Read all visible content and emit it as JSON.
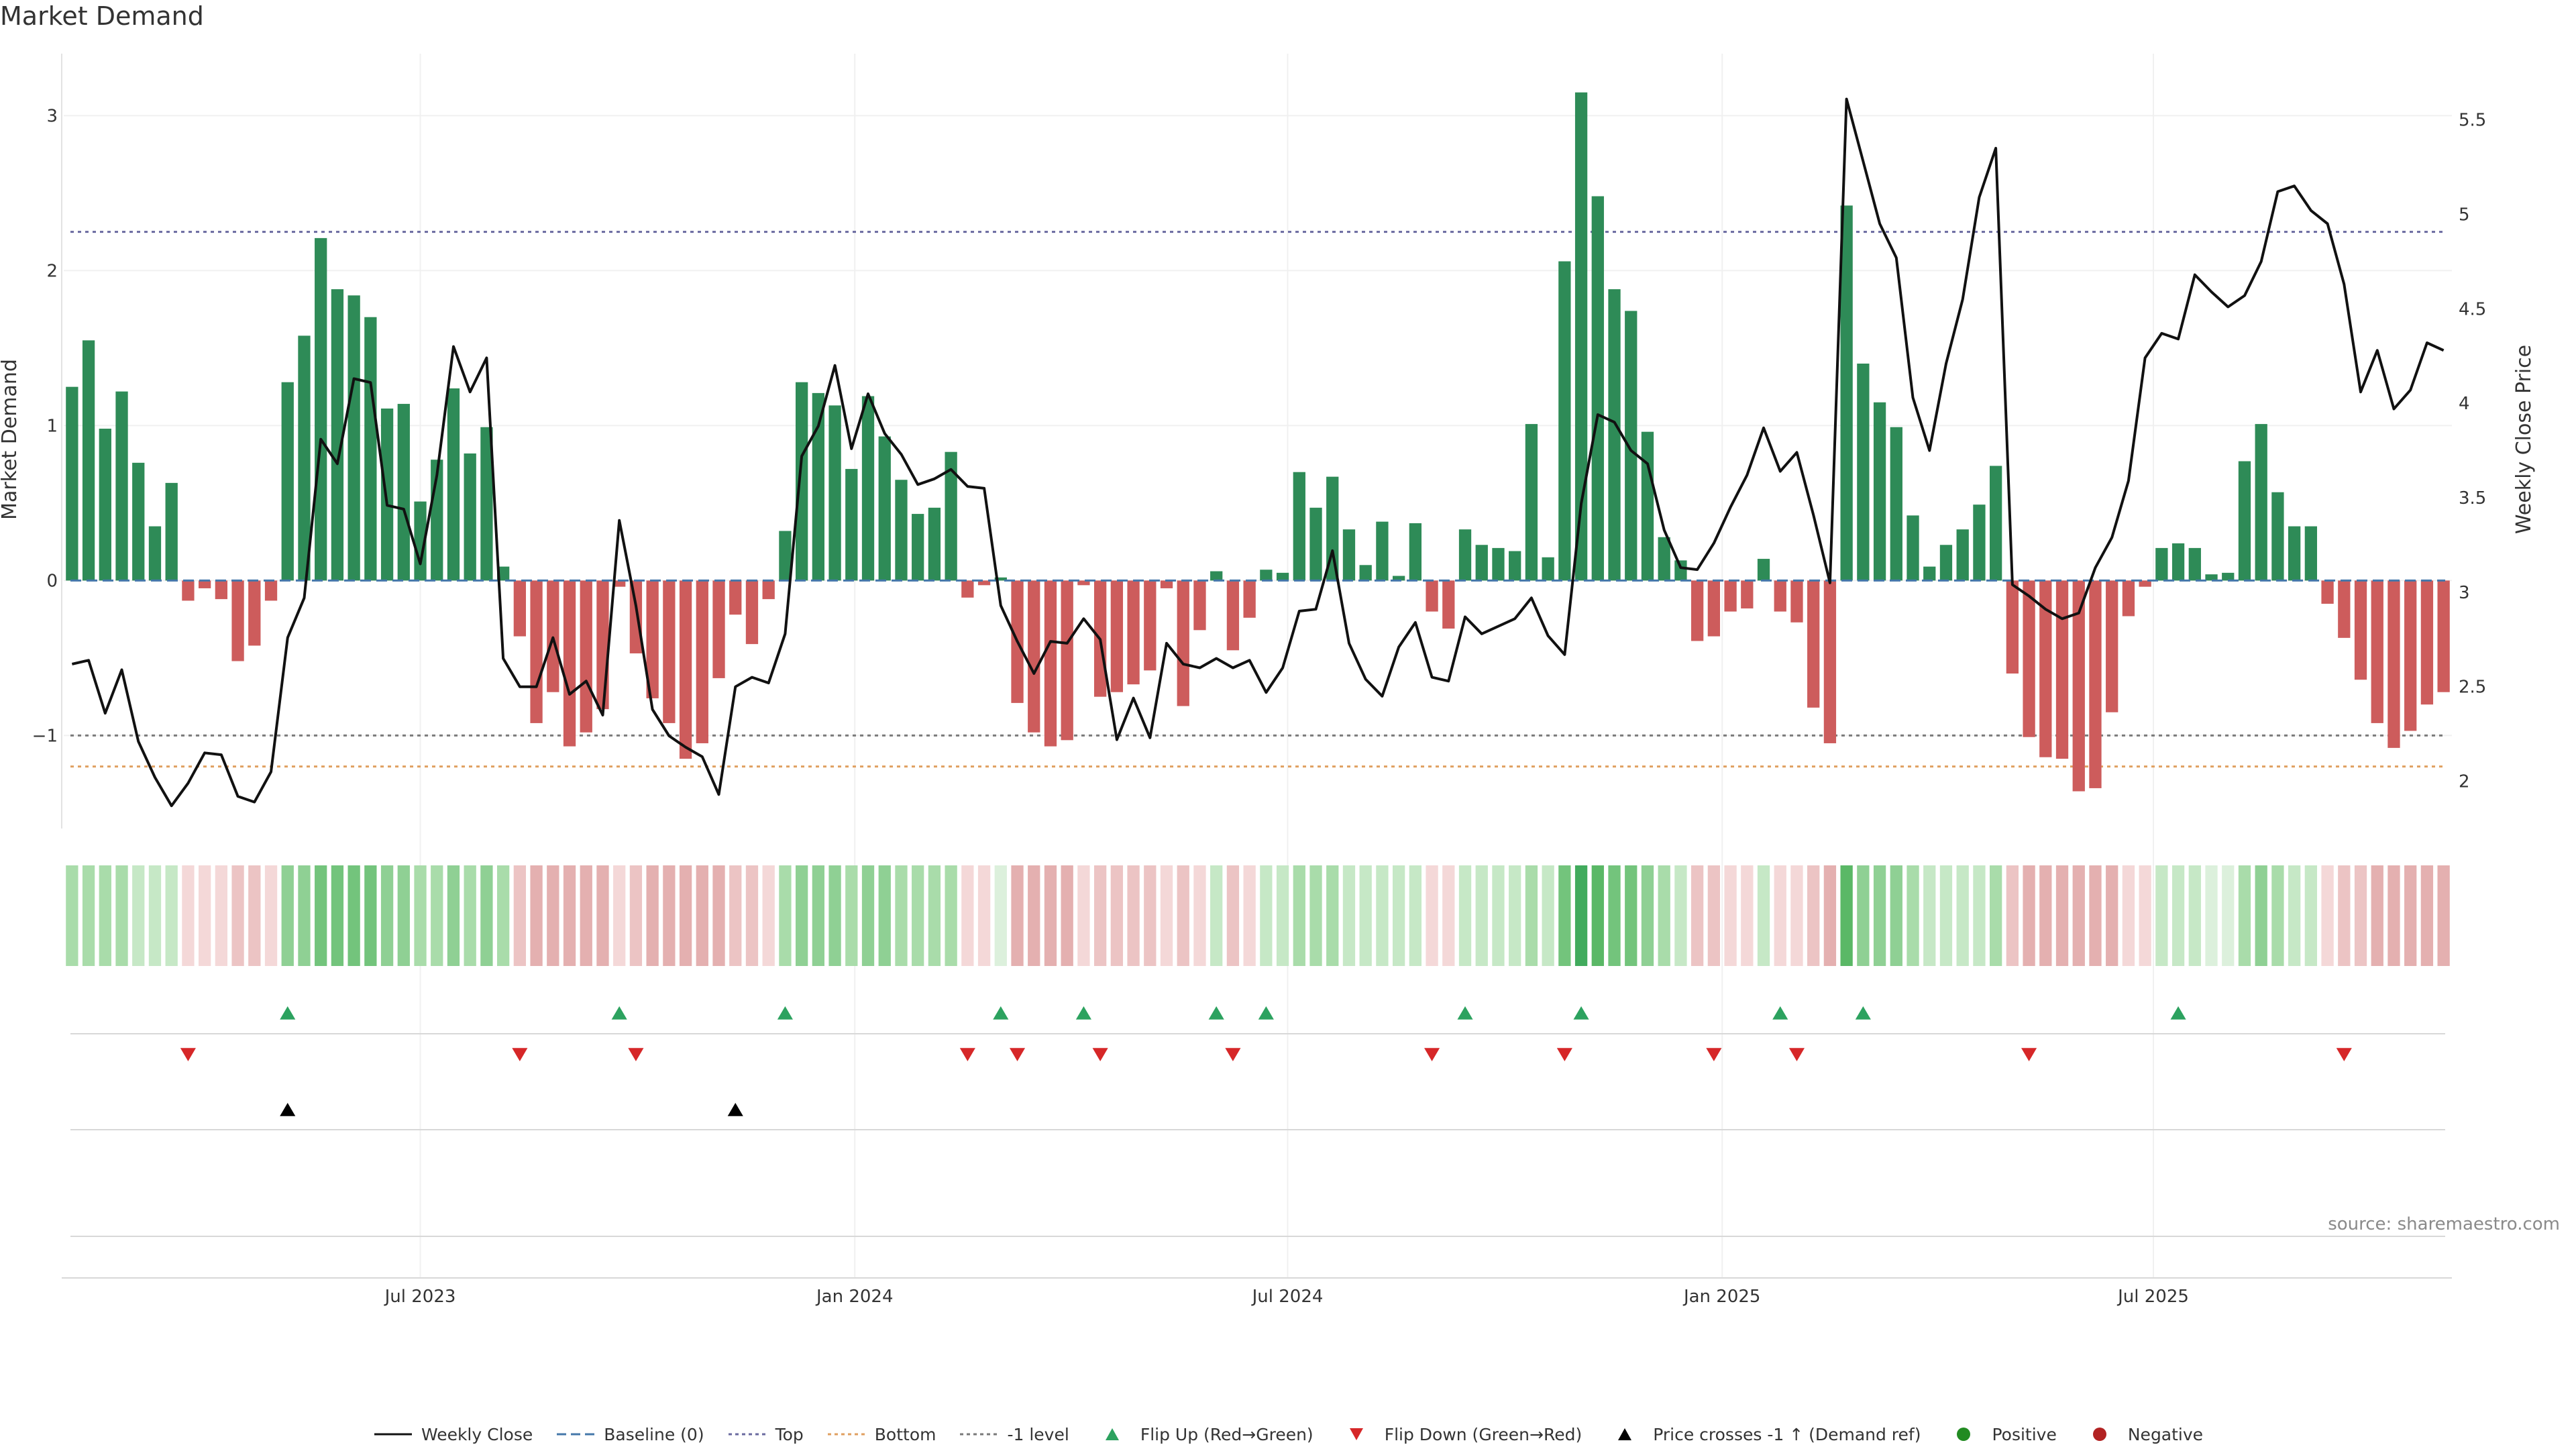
{
  "chart_data": {
    "type": "bar",
    "title": "Market Demand",
    "source": "source: sharemaestro.com",
    "y_left_label": "Market Demand",
    "y_right_label": "Weekly Close Price",
    "y_left_ticks": [
      "3",
      "2",
      "1",
      "0",
      "−1"
    ],
    "y_left_tick_values": [
      3,
      2,
      1,
      0,
      -1
    ],
    "y_left_range": [
      -1.6,
      3.4
    ],
    "y_right_ticks": [
      "5.5",
      "5",
      "4.5",
      "4",
      "3.5",
      "3",
      "2.5",
      "2"
    ],
    "y_right_tick_values": [
      5.5,
      5,
      4.5,
      4,
      3.5,
      3,
      2.5,
      2
    ],
    "y_right_range": [
      1.75,
      5.85
    ],
    "x_ticks": [
      "Jul 2023",
      "Jan 2024",
      "Jul 2024",
      "Jan 2025",
      "Jul 2025"
    ],
    "x_tick_weeks": [
      21.5,
      47.7,
      73.8,
      100,
      126
    ],
    "weeks": 144,
    "reference_lines": {
      "top": 2.25,
      "bottom": -1.2,
      "minus_one": -1.0,
      "baseline": 0
    },
    "demand": [
      1.25,
      1.55,
      0.98,
      1.22,
      0.76,
      0.35,
      0.63,
      -0.13,
      -0.05,
      -0.12,
      -0.52,
      -0.42,
      -0.13,
      1.28,
      1.58,
      2.21,
      1.88,
      1.84,
      1.7,
      1.11,
      1.14,
      0.51,
      0.78,
      1.24,
      0.82,
      0.99,
      0.09,
      -0.36,
      -0.92,
      -0.72,
      -1.07,
      -0.98,
      -0.83,
      -0.04,
      -0.47,
      -0.76,
      -0.92,
      -1.15,
      -1.05,
      -0.63,
      -0.22,
      -0.41,
      -0.12,
      0.32,
      1.28,
      1.21,
      1.13,
      0.72,
      1.19,
      0.93,
      0.65,
      0.43,
      0.47,
      0.83,
      -0.11,
      -0.03,
      0.02,
      -0.79,
      -0.98,
      -1.07,
      -1.03,
      -0.03,
      -0.75,
      -0.72,
      -0.67,
      -0.58,
      -0.05,
      -0.81,
      -0.32,
      0.06,
      -0.45,
      -0.24,
      0.07,
      0.05,
      0.7,
      0.47,
      0.67,
      0.33,
      0.1,
      0.38,
      0.03,
      0.37,
      -0.2,
      -0.31,
      0.33,
      0.23,
      0.21,
      0.19,
      1.01,
      0.15,
      2.06,
      3.15,
      2.48,
      1.88,
      1.74,
      0.96,
      0.28,
      0.13,
      -0.39,
      -0.36,
      -0.2,
      -0.18,
      0.14,
      -0.2,
      -0.27,
      -0.82,
      -1.05,
      2.42,
      1.4,
      1.15,
      0.99,
      0.42,
      0.09,
      0.23,
      0.33,
      0.49,
      0.74,
      -0.6,
      -1.01,
      -1.14,
      -1.15,
      -1.36,
      -1.34,
      -0.85,
      -0.23,
      -0.04,
      0.21,
      0.24,
      0.21,
      0.04,
      0.05,
      0.77,
      1.01,
      0.57,
      0.35,
      0.35,
      -0.15,
      -0.37,
      -0.64,
      -0.92,
      -1.08,
      -0.97,
      -0.8,
      -0.72
    ],
    "weekly_close": [
      2.62,
      2.64,
      2.36,
      2.59,
      2.21,
      2.02,
      1.87,
      1.99,
      2.15,
      2.14,
      1.92,
      1.89,
      2.05,
      2.76,
      2.97,
      3.81,
      3.68,
      4.13,
      4.11,
      3.46,
      3.44,
      3.15,
      3.62,
      4.3,
      4.06,
      4.24,
      2.65,
      2.5,
      2.5,
      2.76,
      2.46,
      2.53,
      2.35,
      3.38,
      2.93,
      2.38,
      2.24,
      2.18,
      2.13,
      1.93,
      2.5,
      2.55,
      2.52,
      2.78,
      3.72,
      3.88,
      4.2,
      3.76,
      4.05,
      3.84,
      3.73,
      3.57,
      3.6,
      3.65,
      3.56,
      3.55,
      2.93,
      2.74,
      2.57,
      2.74,
      2.73,
      2.86,
      2.75,
      2.22,
      2.44,
      2.23,
      2.73,
      2.62,
      2.6,
      2.65,
      2.6,
      2.64,
      2.47,
      2.6,
      2.9,
      2.91,
      3.22,
      2.73,
      2.54,
      2.45,
      2.71,
      2.84,
      2.55,
      2.53,
      2.87,
      2.78,
      2.82,
      2.86,
      2.97,
      2.77,
      2.67,
      3.47,
      3.94,
      3.9,
      3.75,
      3.68,
      3.33,
      3.13,
      3.12,
      3.26,
      3.45,
      3.62,
      3.87,
      3.64,
      3.74,
      3.41,
      3.05,
      5.61,
      5.28,
      4.95,
      4.77,
      4.03,
      3.75,
      4.21,
      4.55,
      5.09,
      5.35,
      3.04,
      2.98,
      2.91,
      2.86,
      2.89,
      3.13,
      3.29,
      3.59,
      4.24,
      4.37,
      4.34,
      4.68,
      4.59,
      4.51,
      4.57,
      4.75,
      5.12,
      5.15,
      5.02,
      4.95,
      4.63,
      4.06,
      4.28,
      3.97,
      4.07,
      4.32,
      4.28
    ],
    "heat_band": [
      3,
      3,
      3,
      3,
      2,
      2,
      2,
      1,
      1,
      1,
      2,
      2,
      1,
      4,
      4,
      5,
      5,
      5,
      5,
      4,
      4,
      3,
      3,
      4,
      3,
      4,
      3,
      2,
      3,
      3,
      3,
      3,
      3,
      1,
      2,
      3,
      3,
      3,
      3,
      3,
      2,
      2,
      1,
      3,
      4,
      4,
      4,
      3,
      4,
      4,
      3,
      3,
      3,
      3,
      1,
      1,
      1,
      3,
      3,
      3,
      3,
      1,
      2,
      2,
      2,
      2,
      1,
      2,
      1,
      2,
      2,
      1,
      2,
      2,
      3,
      3,
      3,
      2,
      2,
      2,
      2,
      2,
      1,
      1,
      2,
      2,
      2,
      2,
      3,
      2,
      5,
      7,
      6,
      5,
      5,
      4,
      3,
      2,
      2,
      2,
      1,
      1,
      2,
      1,
      1,
      2,
      3,
      6,
      4,
      4,
      4,
      3,
      2,
      2,
      2,
      2,
      3,
      2,
      3,
      3,
      3,
      3,
      3,
      3,
      1,
      1,
      2,
      2,
      2,
      1,
      1,
      3,
      4,
      3,
      2,
      2,
      1,
      2,
      2,
      3,
      3,
      3,
      3,
      3
    ],
    "flip_up_weeks": [
      13,
      33,
      43,
      56,
      61,
      69,
      72,
      84,
      91,
      103,
      108,
      127
    ],
    "flip_down_weeks": [
      7,
      27,
      34,
      54,
      57,
      62,
      70,
      82,
      90,
      99,
      104,
      118,
      137
    ],
    "price_cross_weeks": [
      13,
      40
    ],
    "legend": [
      {
        "label": "Weekly Close",
        "kind": "line",
        "color": "#111111"
      },
      {
        "label": "Baseline (0)",
        "kind": "dash",
        "color": "#4477aa"
      },
      {
        "label": "Top",
        "kind": "dot",
        "color": "#6a6aa0"
      },
      {
        "label": "Bottom",
        "kind": "dot",
        "color": "#e0a060"
      },
      {
        "label": "-1 level",
        "kind": "dot",
        "color": "#7a7a7a"
      },
      {
        "label": "Flip Up (Red→Green)",
        "kind": "tri-up",
        "color": "#2ca25f"
      },
      {
        "label": "Flip Down (Green→Red)",
        "kind": "tri-down",
        "color": "#d62728"
      },
      {
        "label": "Price crosses -1 ↑ (Demand ref)",
        "kind": "tri-up",
        "color": "#000000"
      },
      {
        "label": "Positive",
        "kind": "circle",
        "color": "#228b22"
      },
      {
        "label": "Negative",
        "kind": "circle",
        "color": "#b22222"
      }
    ],
    "colors": {
      "positive_bar": "#2e8b57",
      "negative_bar": "#cd5c5c",
      "price_line": "#111111",
      "top_line": "#6a6aa0",
      "bottom_line": "#e0a060",
      "minus_one_line": "#7a7a7a",
      "baseline": "#4477aa",
      "heat_green": [
        "#dcf0dc",
        "#c6e8c6",
        "#a9dcaa",
        "#8fd094",
        "#73c47c",
        "#5ab866",
        "#41ab5d",
        "#2e9a4a"
      ],
      "heat_red": [
        "#f4d8d8",
        "#ecc4c4",
        "#e4b0b0",
        "#db9c9c"
      ],
      "flip_up": "#2ca25f",
      "flip_down": "#d62728",
      "price_cross": "#000000"
    }
  }
}
